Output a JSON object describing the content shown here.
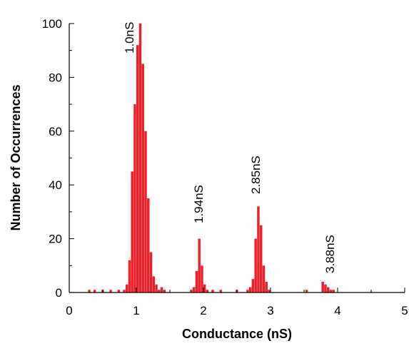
{
  "chart_data": {
    "type": "histogram",
    "xlabel": "Conductance (nS)",
    "ylabel": "Number of Occurrences",
    "color": "#ec2027",
    "xlim": [
      0,
      5
    ],
    "xticks": [
      0,
      1,
      2,
      3,
      4,
      5
    ],
    "ylim": [
      0,
      100
    ],
    "yticks": [
      0,
      20,
      40,
      60,
      80,
      100
    ],
    "annotations": [
      "1.0nS",
      "1.94nS",
      "2.85nS",
      "3.88nS"
    ],
    "bins": [
      0.2,
      0.24,
      0.28,
      0.32,
      0.36,
      0.4,
      0.44,
      0.48,
      0.52,
      0.56,
      0.6,
      0.64,
      0.68,
      0.72,
      0.76,
      0.8,
      0.84,
      0.88,
      0.92,
      0.96,
      1.0,
      1.04,
      1.08,
      1.12,
      1.16,
      1.2,
      1.24,
      1.28,
      1.32,
      1.36,
      1.4,
      1.44,
      1.48,
      1.52,
      1.56,
      1.6,
      1.64,
      1.68,
      1.72,
      1.76,
      1.8,
      1.84,
      1.88,
      1.92,
      1.96,
      2.0,
      2.04,
      2.08,
      2.12,
      2.16,
      2.2,
      2.24,
      2.28,
      2.32,
      2.36,
      2.4,
      2.44,
      2.48,
      2.52,
      2.56,
      2.6,
      2.64,
      2.68,
      2.72,
      2.76,
      2.8,
      2.84,
      2.88,
      2.92,
      2.96,
      3.0,
      3.04,
      3.08,
      3.12,
      3.16,
      3.2,
      3.24,
      3.28,
      3.32,
      3.36,
      3.4,
      3.44,
      3.48,
      3.52,
      3.56,
      3.6,
      3.64,
      3.68,
      3.72,
      3.76,
      3.8,
      3.84,
      3.88,
      3.92,
      3.96,
      4.0,
      4.04,
      4.08,
      4.12,
      4.16,
      4.2
    ],
    "values": [
      0,
      0,
      1,
      0,
      1,
      0,
      0,
      1,
      0,
      0,
      1,
      0,
      0,
      1,
      0,
      1,
      3,
      12,
      45,
      70,
      92,
      100,
      85,
      60,
      35,
      15,
      6,
      3,
      1,
      2,
      1,
      0,
      0,
      0,
      0,
      0,
      0,
      0,
      0,
      0,
      1,
      2,
      8,
      20,
      10,
      3,
      1,
      0,
      1,
      0,
      0,
      1,
      0,
      0,
      0,
      0,
      0,
      1,
      0,
      0,
      0,
      1,
      2,
      5,
      20,
      32,
      25,
      10,
      4,
      1,
      0,
      0,
      0,
      0,
      0,
      0,
      0,
      0,
      0,
      0,
      0,
      0,
      0,
      1,
      0,
      0,
      0,
      0,
      0,
      4,
      3,
      2,
      1,
      1,
      0,
      0,
      0,
      0,
      0,
      0
    ]
  }
}
